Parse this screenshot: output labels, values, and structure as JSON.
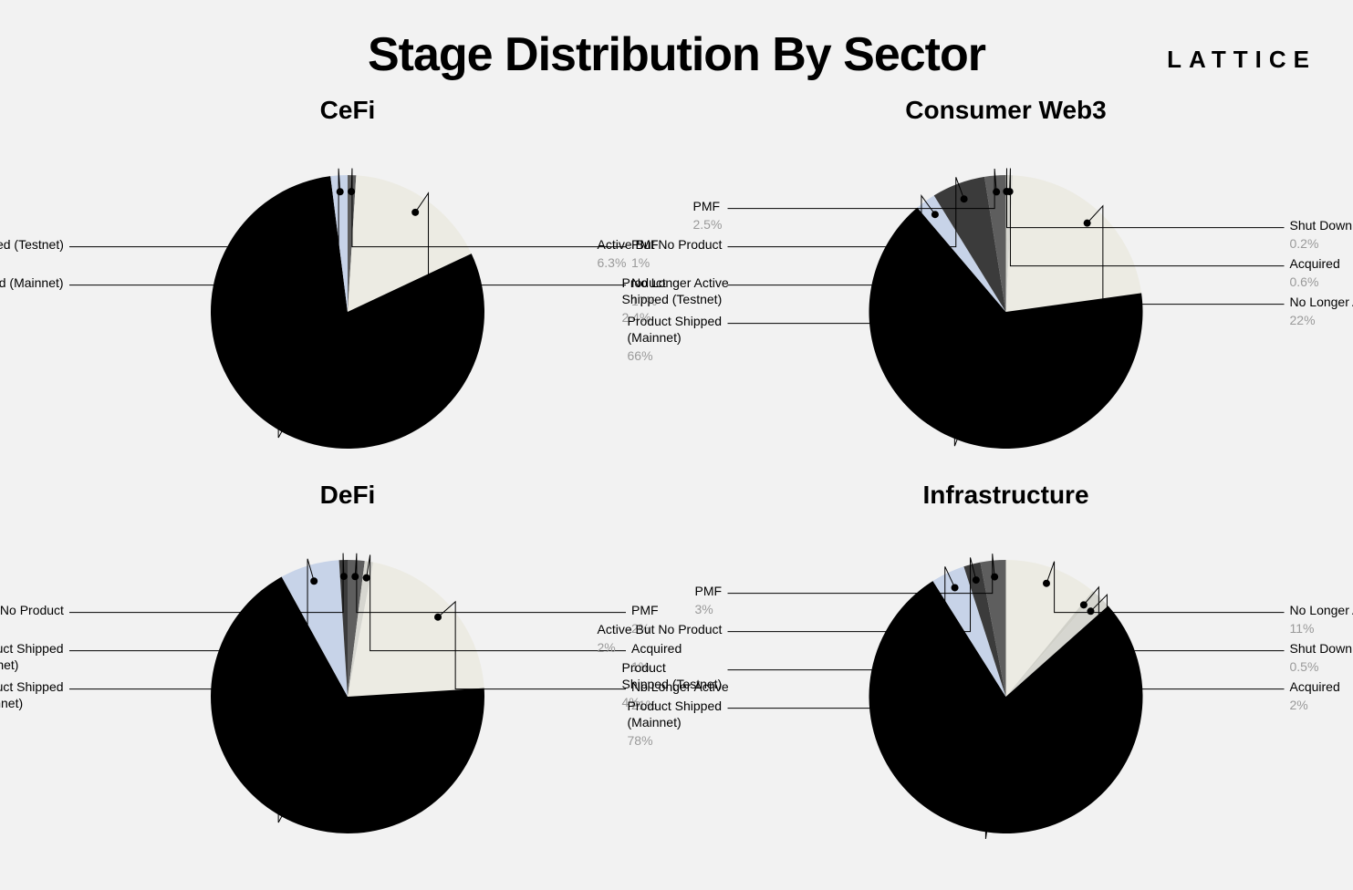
{
  "main_title": "Stage Distribution By Sector",
  "logo_text": "LATTICE",
  "background_color": "#f2f2f2",
  "title_fontsize": 52,
  "panel_title_fontsize": 28,
  "label_fontsize": 14,
  "leader_color": "#000000",
  "dot_radius": 4,
  "pie_radius": 150,
  "colors": {
    "mainnet": "#000000",
    "testnet": "#c7d3e8",
    "no_product": "#3b3b3b",
    "pmf": "#5e5e5e",
    "no_longer_active": "#ecebe3",
    "acquired": "#d6d6d0",
    "shut_down": "#d0d0c8"
  },
  "charts": [
    {
      "id": "cefi",
      "title": "CeFi",
      "type": "pie",
      "slices": [
        {
          "label": "PMF",
          "value": 1,
          "pct": "1%",
          "color": "#5e5e5e",
          "side": "right"
        },
        {
          "label": "No Longer Active",
          "value": 17,
          "pct": "17%",
          "color": "#ecebe3",
          "side": "right"
        },
        {
          "label": "Product Shipped (Mainnet)",
          "value": 80,
          "pct": "80%",
          "color": "#000000",
          "side": "left"
        },
        {
          "label": "Product Shipped (Testnet)",
          "value": 2,
          "pct": "2%",
          "color": "#c7d3e8",
          "side": "left"
        }
      ]
    },
    {
      "id": "consumer",
      "title": "Consumer Web3",
      "type": "pie",
      "slices": [
        {
          "label": "Shut Down",
          "value": 0.2,
          "pct": "0.2%",
          "color": "#d0d0c8",
          "side": "right"
        },
        {
          "label": "Acquired",
          "value": 0.6,
          "pct": "0.6%",
          "color": "#d6d6d0",
          "side": "right"
        },
        {
          "label": "No Longer Active",
          "value": 22,
          "pct": "22%",
          "color": "#ecebe3",
          "side": "right"
        },
        {
          "label": "Product Shipped\n(Mainnet)",
          "value": 66,
          "pct": "66%",
          "color": "#000000",
          "side": "left"
        },
        {
          "label": "Product\nShipped (Testnet)",
          "value": 2.4,
          "pct": "2.4%",
          "color": "#c7d3e8",
          "side": "left"
        },
        {
          "label": "Active But No Product",
          "value": 6.3,
          "pct": "6.3%",
          "color": "#3b3b3b",
          "side": "left"
        },
        {
          "label": "PMF",
          "value": 2.5,
          "pct": "2.5%",
          "color": "#5e5e5e",
          "side": "left"
        }
      ]
    },
    {
      "id": "defi",
      "title": "DeFi",
      "type": "pie",
      "slices": [
        {
          "label": "PMF",
          "value": 2,
          "pct": "2%",
          "color": "#5e5e5e",
          "side": "right"
        },
        {
          "label": "Acquired",
          "value": 1,
          "pct": "1%",
          "color": "#d6d6d0",
          "side": "right"
        },
        {
          "label": "No Longer Active",
          "value": 21,
          "pct": "21%",
          "color": "#ecebe3",
          "side": "right"
        },
        {
          "label": "Product Shipped\n(Mainnet)",
          "value": 68,
          "pct": "68%",
          "color": "#000000",
          "side": "left"
        },
        {
          "label": "Product Shipped\n(Testnet)",
          "value": 7,
          "pct": "7%",
          "color": "#c7d3e8",
          "side": "left"
        },
        {
          "label": "Active But No Product",
          "value": 1,
          "pct": "1%",
          "color": "#3b3b3b",
          "side": "left"
        }
      ]
    },
    {
      "id": "infra",
      "title": "Infrastructure",
      "type": "pie",
      "slices": [
        {
          "label": "No Longer Active",
          "value": 11,
          "pct": "11%",
          "color": "#ecebe3",
          "side": "right"
        },
        {
          "label": "Shut Down",
          "value": 0.5,
          "pct": "0.5%",
          "color": "#d0d0c8",
          "side": "right"
        },
        {
          "label": "Acquired",
          "value": 2,
          "pct": "2%",
          "color": "#d6d6d0",
          "side": "right"
        },
        {
          "label": "Product Shipped\n(Mainnet)",
          "value": 78,
          "pct": "78%",
          "color": "#000000",
          "side": "left"
        },
        {
          "label": "Product\nShipped (Testnet)",
          "value": 4,
          "pct": "4%",
          "color": "#c7d3e8",
          "side": "left"
        },
        {
          "label": "Active But No Product",
          "value": 2,
          "pct": "2%",
          "color": "#3b3b3b",
          "side": "left"
        },
        {
          "label": "PMF",
          "value": 3,
          "pct": "3%",
          "color": "#5e5e5e",
          "side": "left"
        }
      ]
    }
  ]
}
